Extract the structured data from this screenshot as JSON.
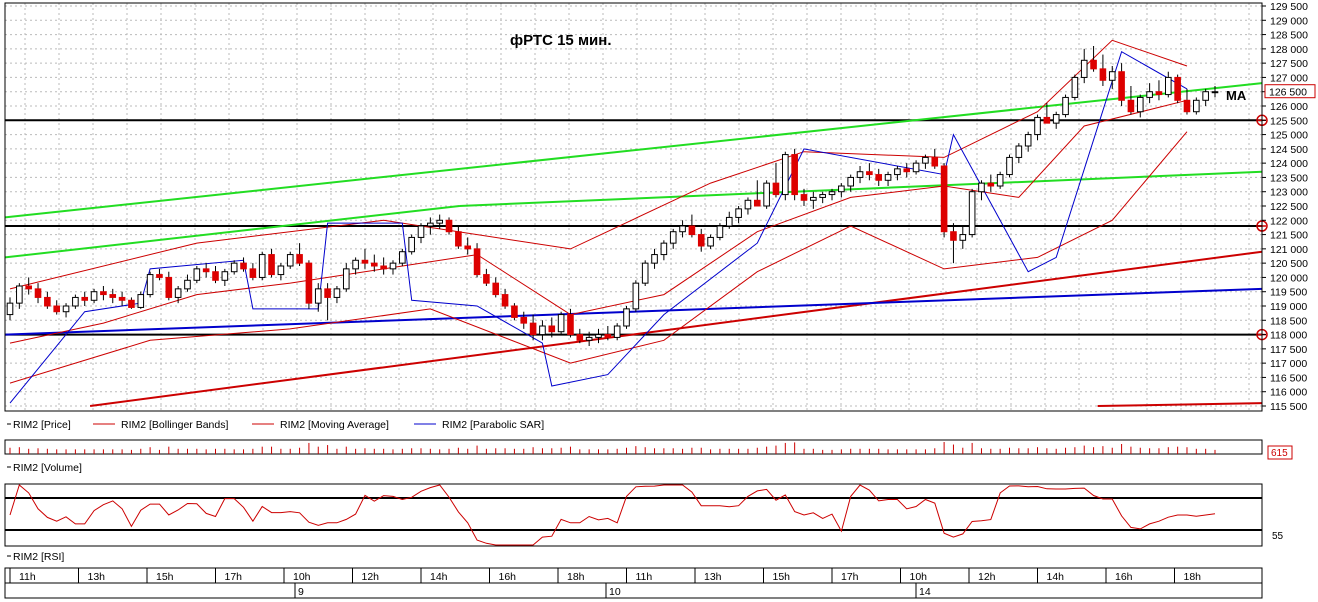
{
  "chart_data": {
    "type": "candlestick",
    "title": "фРТС   15 мин.",
    "ma_label": "MA",
    "instrument": "RIM2",
    "y_range": [
      115500,
      129500
    ],
    "y_ticks": [
      115500,
      116000,
      116500,
      117000,
      117500,
      118000,
      118500,
      119000,
      119500,
      120000,
      120500,
      121000,
      121500,
      122000,
      122500,
      123000,
      123500,
      124000,
      124500,
      125000,
      125500,
      126000,
      126500,
      127000,
      127500,
      128000,
      128500,
      129000,
      129500
    ],
    "y_tick_labels": [
      "115 500",
      "116 000",
      "116 500",
      "117 000",
      "117 500",
      "118 000",
      "118 500",
      "119 000",
      "119 500",
      "120 000",
      "120 500",
      "121 000",
      "121 500",
      "122 000",
      "122 500",
      "123 000",
      "123 500",
      "124 000",
      "124 500",
      "125 000",
      "125 500",
      "126 000",
      "126 500",
      "127 000",
      "127 500",
      "128 000",
      "128 500",
      "129 000",
      "129 500"
    ],
    "last_price": 126500,
    "last_price_label": "126 500",
    "horizontal_levels": [
      125500,
      121800,
      118000
    ],
    "legend": [
      "RIM2 [Price]",
      "RIM2 [Bollinger Bands]",
      "RIM2 [Moving Average]",
      "RIM2 [Parabolic SAR]"
    ],
    "volume_label": "RIM2 [Volume]",
    "volume_value": "615",
    "rsi_label": "RIM2 [RSI]",
    "rsi_value": "55",
    "time_labels": [
      "11h",
      "13h",
      "15h",
      "17h",
      "10h",
      "12h",
      "14h",
      "16h",
      "18h",
      "11h",
      "13h",
      "15h",
      "17h",
      "10h",
      "12h",
      "14h",
      "16h",
      "18h"
    ],
    "date_labels": [
      "9",
      "10",
      "14"
    ],
    "candles": [
      [
        118700,
        119300,
        118500,
        119100
      ],
      [
        119100,
        119800,
        118900,
        119700
      ],
      [
        119700,
        120000,
        119400,
        119600
      ],
      [
        119600,
        119800,
        119100,
        119300
      ],
      [
        119300,
        119500,
        118900,
        119000
      ],
      [
        119000,
        119200,
        118700,
        118800
      ],
      [
        118800,
        119100,
        118600,
        119000
      ],
      [
        119000,
        119400,
        118900,
        119300
      ],
      [
        119300,
        119500,
        119000,
        119200
      ],
      [
        119200,
        119600,
        119100,
        119500
      ],
      [
        119500,
        119700,
        119200,
        119400
      ],
      [
        119400,
        119600,
        119100,
        119300
      ],
      [
        119300,
        119500,
        119000,
        119200
      ],
      [
        119200,
        119300,
        118900,
        118950
      ],
      [
        118950,
        119500,
        118900,
        119400
      ],
      [
        119400,
        120200,
        119300,
        120100
      ],
      [
        120100,
        120300,
        119900,
        120000
      ],
      [
        120000,
        120200,
        119200,
        119300
      ],
      [
        119300,
        119700,
        119100,
        119600
      ],
      [
        119600,
        120100,
        119500,
        119900
      ],
      [
        119900,
        120400,
        119800,
        120300
      ],
      [
        120300,
        120500,
        120000,
        120200
      ],
      [
        120200,
        120400,
        119800,
        119900
      ],
      [
        119900,
        120300,
        119700,
        120200
      ],
      [
        120200,
        120600,
        120100,
        120500
      ],
      [
        120500,
        120700,
        120200,
        120300
      ],
      [
        120300,
        120500,
        119900,
        120000
      ],
      [
        120000,
        120900,
        119900,
        120800
      ],
      [
        120800,
        121000,
        120000,
        120100
      ],
      [
        120100,
        120500,
        119900,
        120400
      ],
      [
        120400,
        120900,
        120300,
        120800
      ],
      [
        120800,
        121200,
        120400,
        120500
      ],
      [
        120500,
        120600,
        118900,
        119100
      ],
      [
        119100,
        119800,
        118800,
        119600
      ],
      [
        119600,
        119800,
        118500,
        119300
      ],
      [
        119300,
        119700,
        119100,
        119600
      ],
      [
        119600,
        120500,
        119500,
        120300
      ],
      [
        120300,
        120700,
        120100,
        120600
      ],
      [
        120600,
        121000,
        120300,
        120500
      ],
      [
        120500,
        120800,
        120200,
        120400
      ],
      [
        120400,
        120700,
        120100,
        120300
      ],
      [
        120300,
        120600,
        120100,
        120500
      ],
      [
        120500,
        121000,
        120400,
        120900
      ],
      [
        120900,
        121500,
        120800,
        121400
      ],
      [
        121400,
        121900,
        121200,
        121800
      ],
      [
        121800,
        122100,
        121500,
        121900
      ],
      [
        121900,
        122200,
        121700,
        122000
      ],
      [
        122000,
        122100,
        121500,
        121600
      ],
      [
        121600,
        121800,
        121000,
        121100
      ],
      [
        121100,
        121400,
        120800,
        121000
      ],
      [
        121000,
        121200,
        120000,
        120100
      ],
      [
        120100,
        120300,
        119700,
        119800
      ],
      [
        119800,
        120000,
        119300,
        119400
      ],
      [
        119400,
        119600,
        118900,
        119000
      ],
      [
        119000,
        119100,
        118500,
        118600
      ],
      [
        118600,
        118800,
        118200,
        118400
      ],
      [
        118400,
        118700,
        117800,
        118000
      ],
      [
        118000,
        118500,
        117800,
        118300
      ],
      [
        118300,
        118600,
        117900,
        118100
      ],
      [
        118100,
        118800,
        118000,
        118700
      ],
      [
        118700,
        118900,
        117900,
        118000
      ],
      [
        118000,
        118200,
        117700,
        117800
      ],
      [
        117800,
        118100,
        117600,
        117900
      ],
      [
        117900,
        118200,
        117700,
        118000
      ],
      [
        118000,
        118300,
        117800,
        117900
      ],
      [
        117900,
        118400,
        117800,
        118300
      ],
      [
        118300,
        119000,
        118200,
        118900
      ],
      [
        118900,
        119900,
        118800,
        119800
      ],
      [
        119800,
        120600,
        119700,
        120500
      ],
      [
        120500,
        121000,
        120300,
        120800
      ],
      [
        120800,
        121300,
        120600,
        121200
      ],
      [
        121200,
        121700,
        121000,
        121600
      ],
      [
        121600,
        122000,
        121400,
        121800
      ],
      [
        121800,
        122200,
        121400,
        121500
      ],
      [
        121500,
        121700,
        120900,
        121100
      ],
      [
        121100,
        121500,
        121000,
        121400
      ],
      [
        121400,
        121900,
        121300,
        121800
      ],
      [
        121800,
        122300,
        121700,
        122100
      ],
      [
        122100,
        122500,
        121900,
        122400
      ],
      [
        122400,
        122800,
        122200,
        122700
      ],
      [
        122700,
        123400,
        122600,
        122500
      ],
      [
        122500,
        123400,
        122400,
        123300
      ],
      [
        123300,
        124000,
        122800,
        122900
      ],
      [
        122900,
        124400,
        122700,
        124300
      ],
      [
        124300,
        124500,
        122700,
        122900
      ],
      [
        122900,
        123100,
        122500,
        122700
      ],
      [
        122700,
        123000,
        122400,
        122800
      ],
      [
        122800,
        123000,
        122600,
        122900
      ],
      [
        122900,
        123100,
        122700,
        123000
      ],
      [
        123000,
        123300,
        122800,
        123200
      ],
      [
        123200,
        123600,
        123000,
        123500
      ],
      [
        123500,
        123900,
        123300,
        123700
      ],
      [
        123700,
        124000,
        123400,
        123600
      ],
      [
        123600,
        123800,
        123200,
        123400
      ],
      [
        123400,
        123700,
        123200,
        123600
      ],
      [
        123600,
        123900,
        123400,
        123800
      ],
      [
        123800,
        124000,
        123500,
        123700
      ],
      [
        123700,
        124100,
        123600,
        124000
      ],
      [
        124000,
        124300,
        123800,
        124200
      ],
      [
        124200,
        124500,
        123800,
        123900
      ],
      [
        123900,
        124000,
        121400,
        121600
      ],
      [
        121600,
        121900,
        120500,
        121300
      ],
      [
        121300,
        121800,
        121000,
        121500
      ],
      [
        121500,
        123100,
        121400,
        123000
      ],
      [
        123000,
        123400,
        122700,
        123300
      ],
      [
        123300,
        123600,
        123000,
        123200
      ],
      [
        123200,
        123700,
        123100,
        123600
      ],
      [
        123600,
        124300,
        123500,
        124200
      ],
      [
        124200,
        124700,
        124000,
        124600
      ],
      [
        124600,
        125100,
        124400,
        125000
      ],
      [
        125000,
        125700,
        124800,
        125600
      ],
      [
        125600,
        126100,
        125400,
        125400
      ],
      [
        125400,
        125800,
        125200,
        125700
      ],
      [
        125700,
        126400,
        125600,
        126300
      ],
      [
        126300,
        127100,
        126200,
        127000
      ],
      [
        127000,
        128000,
        126800,
        127600
      ],
      [
        127600,
        128100,
        127200,
        127300
      ],
      [
        127300,
        127800,
        126700,
        126900
      ],
      [
        126900,
        127400,
        126600,
        127200
      ],
      [
        127200,
        127500,
        126000,
        126200
      ],
      [
        126200,
        126700,
        125700,
        125800
      ],
      [
        125800,
        126400,
        125600,
        126300
      ],
      [
        126300,
        126800,
        126100,
        126500
      ],
      [
        126500,
        126900,
        126200,
        126400
      ],
      [
        126400,
        127200,
        126300,
        127000
      ],
      [
        127000,
        127100,
        126100,
        126200
      ],
      [
        126200,
        126600,
        125700,
        125800
      ],
      [
        125800,
        126300,
        125700,
        126200
      ],
      [
        126200,
        126600,
        126000,
        126500
      ],
      [
        126500,
        126700,
        126300,
        126500
      ]
    ],
    "bb_upper": [
      [
        0,
        119600
      ],
      [
        20,
        121200
      ],
      [
        40,
        122000
      ],
      [
        60,
        121000
      ],
      [
        75,
        123300
      ],
      [
        85,
        124400
      ],
      [
        100,
        124200
      ],
      [
        110,
        125800
      ],
      [
        118,
        128300
      ],
      [
        126,
        127400
      ]
    ],
    "bb_lower": [
      [
        0,
        116300
      ],
      [
        15,
        117800
      ],
      [
        30,
        118200
      ],
      [
        45,
        118900
      ],
      [
        60,
        117000
      ],
      [
        70,
        117800
      ],
      [
        80,
        120200
      ],
      [
        90,
        121800
      ],
      [
        100,
        120300
      ],
      [
        110,
        120700
      ],
      [
        118,
        122000
      ],
      [
        126,
        125100
      ]
    ],
    "ma": [
      [
        0,
        117700
      ],
      [
        10,
        118400
      ],
      [
        20,
        119400
      ],
      [
        30,
        119800
      ],
      [
        40,
        120300
      ],
      [
        50,
        120800
      ],
      [
        60,
        118700
      ],
      [
        70,
        119400
      ],
      [
        80,
        121600
      ],
      [
        90,
        122800
      ],
      [
        100,
        123200
      ],
      [
        108,
        122800
      ],
      [
        115,
        125300
      ],
      [
        126,
        126200
      ]
    ],
    "sar": [
      [
        0,
        115600
      ],
      [
        8,
        118800
      ],
      [
        14,
        119100
      ],
      [
        15,
        120300
      ],
      [
        25,
        120600
      ],
      [
        26,
        118900
      ],
      [
        33,
        118900
      ],
      [
        34,
        121900
      ],
      [
        42,
        121900
      ],
      [
        43,
        119200
      ],
      [
        50,
        119000
      ],
      [
        57,
        117700
      ],
      [
        58,
        116200
      ],
      [
        64,
        116600
      ],
      [
        70,
        118700
      ],
      [
        80,
        121200
      ],
      [
        85,
        124500
      ],
      [
        100,
        123600
      ],
      [
        101,
        125000
      ],
      [
        109,
        120200
      ],
      [
        112,
        120700
      ],
      [
        119,
        127900
      ],
      [
        126,
        126600
      ]
    ],
    "trendlines": [
      {
        "color": "#22dd22",
        "from": [
          0,
          122100
        ],
        "to": [
          1300,
          126800
        ]
      },
      {
        "color": "#22dd22",
        "from": [
          0,
          120700
        ],
        "to": [
          470,
          122500
        ]
      },
      {
        "color": "#22dd22",
        "from": [
          470,
          122500
        ],
        "to": [
          1300,
          123700
        ]
      },
      {
        "color": "#cc0000",
        "from": [
          88,
          115500
        ],
        "to": [
          1300,
          120900
        ]
      },
      {
        "color": "#0000cc",
        "from": [
          0,
          118000
        ],
        "to": [
          1300,
          119600
        ]
      },
      {
        "color": "#cc0000",
        "from": [
          1130,
          115500
        ],
        "to": [
          1300,
          115600
        ]
      }
    ]
  }
}
